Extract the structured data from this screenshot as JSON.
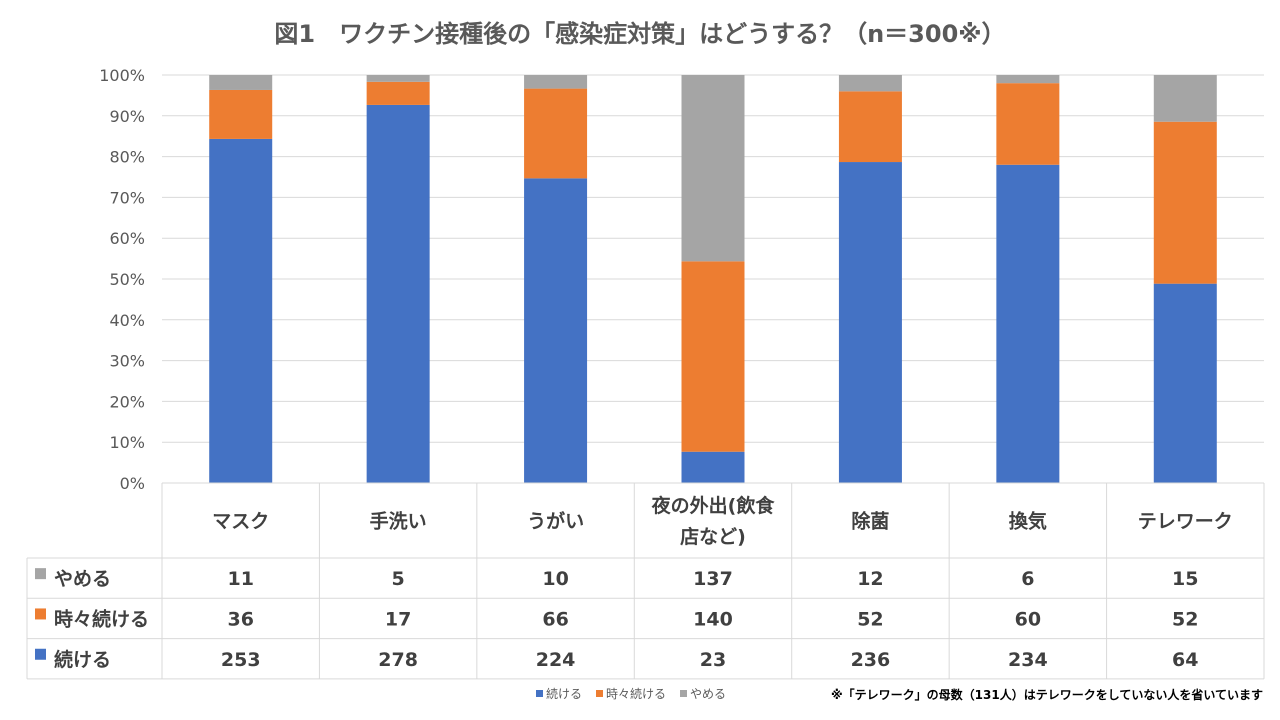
{
  "chart_data": {
    "type": "bar",
    "stacked": "percent",
    "title": "図1　ワクチン接種後の「感染症対策」はどうする？（n＝300※）",
    "categories": [
      [
        "マスク"
      ],
      [
        "手洗い"
      ],
      [
        "うがい"
      ],
      [
        "夜の外出(飲食",
        "店など)"
      ],
      [
        "除菌"
      ],
      [
        "換気"
      ],
      [
        "テレワーク"
      ]
    ],
    "series": [
      {
        "name": "続ける",
        "color": "#4472C4",
        "values": [
          253,
          278,
          224,
          23,
          236,
          234,
          64
        ]
      },
      {
        "name": "時々続ける",
        "color": "#ED7D31",
        "values": [
          36,
          17,
          66,
          140,
          52,
          60,
          52
        ]
      },
      {
        "name": "やめる",
        "color": "#A5A5A5",
        "values": [
          11,
          5,
          10,
          137,
          12,
          6,
          15
        ]
      }
    ],
    "table_row_order": [
      2,
      1,
      0
    ],
    "ylim": [
      0,
      100
    ],
    "yticks": [
      "0%",
      "10%",
      "20%",
      "30%",
      "40%",
      "50%",
      "60%",
      "70%",
      "80%",
      "90%",
      "100%"
    ],
    "grid": true,
    "legend_placement": "bottom",
    "footnote": "※「テレワーク」の母数（131人）はテレワークをしていない人を省いています"
  }
}
